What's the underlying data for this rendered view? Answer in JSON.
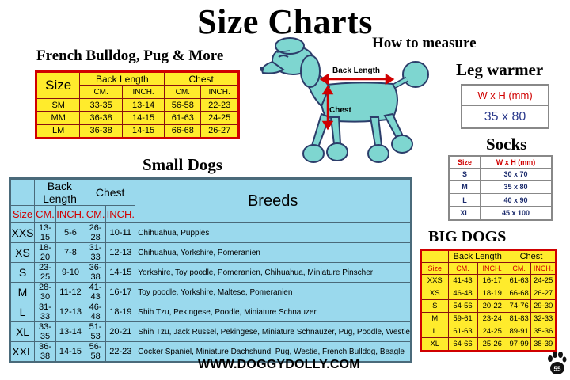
{
  "title": "Size Charts",
  "how_to_measure": "How to measure",
  "diagram": {
    "back_length": "Back Length",
    "chest": "Chest"
  },
  "french": {
    "heading": "French Bulldog, Pug & More",
    "size_label": "Size",
    "back_length": "Back Length",
    "chest": "Chest",
    "cm": "CM.",
    "inch": "INCH.",
    "rows": [
      {
        "size": "SM",
        "bl_cm": "33-35",
        "bl_in": "13-14",
        "ch_cm": "56-58",
        "ch_in": "22-23"
      },
      {
        "size": "MM",
        "bl_cm": "36-38",
        "bl_in": "14-15",
        "ch_cm": "61-63",
        "ch_in": "24-25"
      },
      {
        "size": "LM",
        "bl_cm": "36-38",
        "bl_in": "14-15",
        "ch_cm": "66-68",
        "ch_in": "26-27"
      }
    ]
  },
  "leg_warmer": {
    "heading": "Leg warmer",
    "header": "W x H (mm)",
    "value": "35 x 80"
  },
  "socks": {
    "heading": "Socks",
    "size_label": "Size",
    "header": "W x H (mm)",
    "rows": [
      {
        "size": "S",
        "value": "30 x 70"
      },
      {
        "size": "M",
        "value": "35 x 80"
      },
      {
        "size": "L",
        "value": "40 x 90"
      },
      {
        "size": "XL",
        "value": "45 x 100"
      }
    ]
  },
  "small": {
    "heading": "Small Dogs",
    "size_label": "Size",
    "back_length": "Back Length",
    "chest": "Chest",
    "cm": "CM.",
    "inch": "INCH.",
    "breeds_label": "Breeds",
    "rows": [
      {
        "size": "XXS",
        "bl_cm": "13-15",
        "bl_in": "5-6",
        "ch_cm": "26-28",
        "ch_in": "10-11",
        "breeds": "Chihuahua, Puppies"
      },
      {
        "size": "XS",
        "bl_cm": "18-20",
        "bl_in": "7-8",
        "ch_cm": "31-33",
        "ch_in": "12-13",
        "breeds": "Chihuahua, Yorkshire, Pomeranien"
      },
      {
        "size": "S",
        "bl_cm": "23-25",
        "bl_in": "9-10",
        "ch_cm": "36-38",
        "ch_in": "14-15",
        "breeds": "Yorkshire, Toy poodle, Pomeranien, Chihuahua, Miniature Pinscher"
      },
      {
        "size": "M",
        "bl_cm": "28-30",
        "bl_in": "11-12",
        "ch_cm": "41-43",
        "ch_in": "16-17",
        "breeds": "Toy poodle, Yorkshire, Maltese, Pomeranien"
      },
      {
        "size": "L",
        "bl_cm": "31-33",
        "bl_in": "12-13",
        "ch_cm": "46-48",
        "ch_in": "18-19",
        "breeds": "Shih Tzu, Pekingese, Poodle, Miniature Schnauzer"
      },
      {
        "size": "XL",
        "bl_cm": "33-35",
        "bl_in": "13-14",
        "ch_cm": "51-53",
        "ch_in": "20-21",
        "breeds": "Shih Tzu, Jack Russel, Pekingese, Miniature Schnauzer, Pug, Poodle, Westie"
      },
      {
        "size": "XXL",
        "bl_cm": "36-38",
        "bl_in": "14-15",
        "ch_cm": "56-58",
        "ch_in": "22-23",
        "breeds": "Cocker Spaniel, Miniature Dachshund, Pug, Westie, French Bulldog, Beagle"
      }
    ]
  },
  "big": {
    "heading": "BIG DOGS",
    "size_label": "Size",
    "back_length": "Back Length",
    "chest": "Chest",
    "cm": "CM.",
    "inch": "INCH.",
    "rows": [
      {
        "size": "XXS",
        "bl_cm": "41-43",
        "bl_in": "16-17",
        "ch_cm": "61-63",
        "ch_in": "24-25"
      },
      {
        "size": "XS",
        "bl_cm": "46-48",
        "bl_in": "18-19",
        "ch_cm": "66-68",
        "ch_in": "26-27"
      },
      {
        "size": "S",
        "bl_cm": "54-56",
        "bl_in": "20-22",
        "ch_cm": "74-76",
        "ch_in": "29-30"
      },
      {
        "size": "M",
        "bl_cm": "59-61",
        "bl_in": "23-24",
        "ch_cm": "81-83",
        "ch_in": "32-33"
      },
      {
        "size": "L",
        "bl_cm": "61-63",
        "bl_in": "24-25",
        "ch_cm": "89-91",
        "ch_in": "35-36"
      },
      {
        "size": "XL",
        "bl_cm": "64-66",
        "bl_in": "25-26",
        "ch_cm": "97-99",
        "ch_in": "38-39"
      }
    ]
  },
  "website": "WWW.DOGGYDOLLY.COM",
  "logo_number": "55",
  "colors": {
    "accent_red": "#d00000",
    "yellow": "#ffeb2c",
    "cyan": "#9ad9ed",
    "poodle": "#7ed6d0",
    "navy": "#2b3a8c"
  }
}
